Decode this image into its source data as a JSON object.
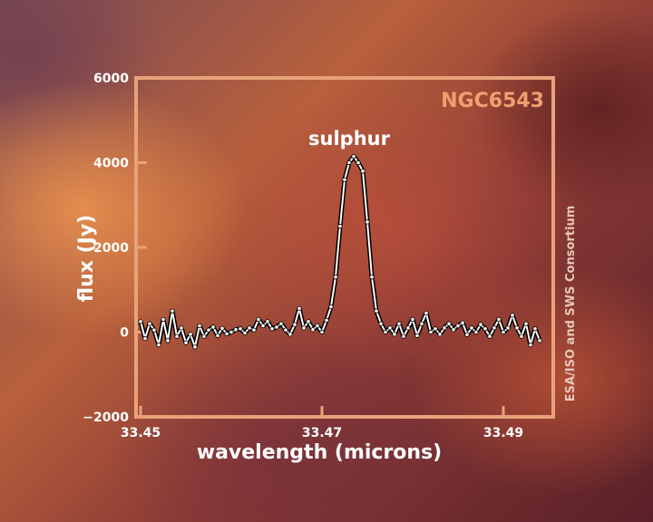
{
  "chart_data": {
    "type": "line",
    "title": "",
    "object_name": "NGC6543",
    "annotation": "sulphur",
    "credit": "ESA/ISO and SWS Consortium",
    "xlabel": "wavelength (microns)",
    "ylabel": "flux (Jy)",
    "xlim": [
      33.4495,
      33.4955
    ],
    "ylim": [
      -2000,
      6000
    ],
    "xticks": [
      {
        "value": 33.45,
        "label": "33.45"
      },
      {
        "value": 33.47,
        "label": "33.47"
      },
      {
        "value": 33.49,
        "label": "33.49"
      }
    ],
    "yticks": [
      {
        "value": 6000,
        "label": "6000"
      },
      {
        "value": 4000,
        "label": "4000"
      },
      {
        "value": 2000,
        "label": "2000"
      },
      {
        "value": 0,
        "label": "0"
      },
      {
        "value": -2000,
        "label": "−2000"
      }
    ],
    "grid": false,
    "series": [
      {
        "color": "#ffffff",
        "x": [
          33.45,
          33.4505,
          33.451,
          33.4515,
          33.452,
          33.4525,
          33.453,
          33.4535,
          33.454,
          33.4545,
          33.455,
          33.4555,
          33.456,
          33.4565,
          33.457,
          33.4575,
          33.458,
          33.4585,
          33.459,
          33.4595,
          33.46,
          33.4605,
          33.461,
          33.4615,
          33.462,
          33.4625,
          33.463,
          33.4635,
          33.464,
          33.4645,
          33.465,
          33.4655,
          33.466,
          33.4665,
          33.467,
          33.4675,
          33.468,
          33.4685,
          33.469,
          33.4695,
          33.47,
          33.4705,
          33.471,
          33.4715,
          33.472,
          33.4725,
          33.473,
          33.4735,
          33.474,
          33.4745,
          33.475,
          33.4755,
          33.476,
          33.4765,
          33.477,
          33.4775,
          33.478,
          33.4785,
          33.479,
          33.4795,
          33.48,
          33.4805,
          33.481,
          33.4815,
          33.482,
          33.4825,
          33.483,
          33.4835,
          33.484,
          33.4845,
          33.485,
          33.4855,
          33.486,
          33.4865,
          33.487,
          33.4875,
          33.488,
          33.4885,
          33.489,
          33.4895,
          33.49,
          33.4905,
          33.491,
          33.4915,
          33.492,
          33.4925,
          33.493,
          33.4935,
          33.494
        ],
        "y": [
          250,
          -150,
          200,
          50,
          -300,
          300,
          -200,
          500,
          -100,
          100,
          -250,
          -50,
          -350,
          150,
          -100,
          50,
          120,
          -80,
          90,
          -40,
          0,
          60,
          80,
          -20,
          100,
          50,
          300,
          150,
          250,
          80,
          120,
          200,
          50,
          -50,
          180,
          560,
          100,
          250,
          60,
          150,
          0,
          280,
          600,
          1300,
          2500,
          3600,
          4000,
          4150,
          4000,
          3800,
          2600,
          1300,
          500,
          200,
          0,
          100,
          -50,
          200,
          -100,
          100,
          300,
          -80,
          200,
          450,
          0,
          80,
          -50,
          100,
          200,
          60,
          150,
          220,
          -60,
          100,
          0,
          180,
          80,
          -100,
          100,
          300,
          0,
          100,
          400,
          100,
          -100,
          200,
          -300,
          80,
          -200
        ]
      }
    ]
  }
}
